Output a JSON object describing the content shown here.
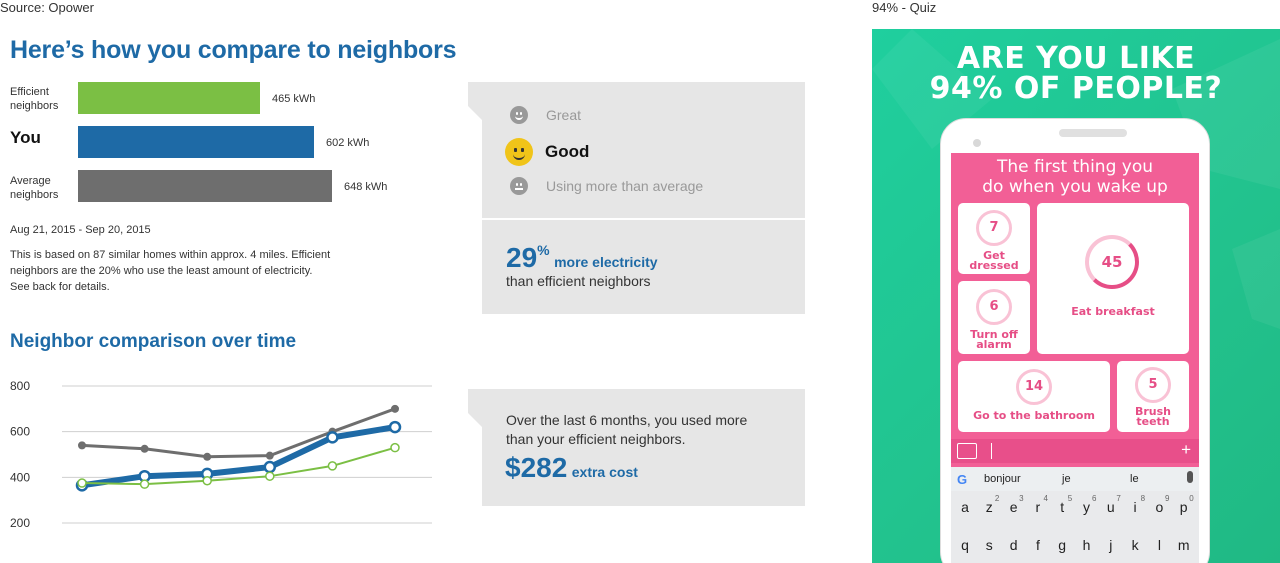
{
  "captions": {
    "left": "Source: Opower",
    "right": "94% - Quiz"
  },
  "compare": {
    "title": "Here’s how you compare to neighbors",
    "rows": [
      {
        "label_line1": "Efficient",
        "label_line2": "neighbors",
        "value": "465 kWh",
        "kwh": 465,
        "color": "#7bbf44"
      },
      {
        "label_line1": "You",
        "label_line2": "",
        "value": "602 kWh",
        "kwh": 602,
        "color": "#1e6aa6"
      },
      {
        "label_line1": "Average",
        "label_line2": "neighbors",
        "value": "648 kWh",
        "kwh": 648,
        "color": "#6e6e6e"
      }
    ],
    "date_range": "Aug 21, 2015 - Sep 20, 2015",
    "note_line1": "This is based on 87 similar homes within approx. 4 miles. Efficient",
    "note_line2": "neighbors are the 20% who use the least amount of electricity.",
    "note_line3": "See back for details."
  },
  "rating": {
    "great": "Great",
    "good": "Good",
    "average": "Using more than average"
  },
  "stat": {
    "pct": "29",
    "pct_symbol": "%",
    "pct_text": "more electricity",
    "pct_sub": "than efficient neighbors"
  },
  "over_time": {
    "title": "Neighbor comparison over time"
  },
  "cost": {
    "line1": "Over the last 6 months, you used more",
    "line2": "than your efficient neighbors.",
    "amount": "$282",
    "amount_text": "extra cost"
  },
  "chart_data": {
    "type": "line",
    "x": [
      1,
      2,
      3,
      4,
      5,
      6
    ],
    "ylim": [
      200,
      800
    ],
    "yticks": [
      "800",
      "600",
      "400",
      "200"
    ],
    "ytick_values": [
      800,
      600,
      400,
      200
    ],
    "series": [
      {
        "values": [
          540,
          525,
          490,
          495,
          600,
          700
        ],
        "color": "#6e6e6e"
      },
      {
        "values": [
          365,
          405,
          415,
          445,
          575,
          620
        ],
        "color": "#1e6aa6"
      },
      {
        "values": [
          375,
          370,
          385,
          405,
          450,
          530
        ],
        "color": "#7bbf44"
      }
    ]
  },
  "quiz": {
    "headline_line1": "ARE YOU LIKE",
    "headline_line2": "94% OF PEOPLE?",
    "question_line1": "The first thing you",
    "question_line2": "do when you wake up",
    "cards": {
      "dressed": {
        "num": "7",
        "label1": "Get",
        "label2": "dressed"
      },
      "breakfast": {
        "num": "45",
        "label1": "Eat breakfast"
      },
      "alarm": {
        "num": "6",
        "label1": "Turn off",
        "label2": "alarm"
      },
      "bathroom": {
        "num": "14",
        "label1": "Go to the bathroom"
      },
      "teeth": {
        "num": "5",
        "label1": "Brush",
        "label2": "teeth"
      }
    },
    "suggestions": [
      "bonjour",
      "je",
      "le"
    ],
    "row1": [
      "a",
      "z",
      "e",
      "r",
      "t",
      "y",
      "u",
      "i",
      "o",
      "p"
    ],
    "row1_hints": [
      "",
      "2",
      "3",
      "4",
      "5",
      "6",
      "7",
      "8",
      "9",
      "0"
    ],
    "row2": [
      "q",
      "s",
      "d",
      "f",
      "g",
      "h",
      "j",
      "k",
      "l",
      "m"
    ],
    "google": "G",
    "plus": "+",
    "mic": "🎤"
  }
}
